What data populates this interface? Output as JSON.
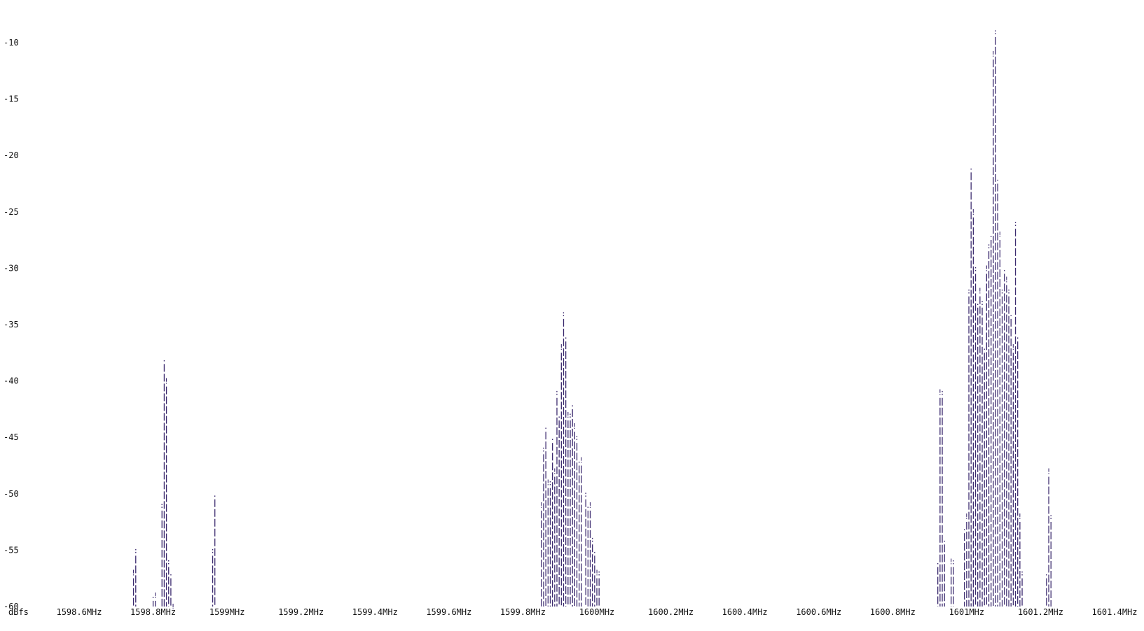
{
  "chart_data": {
    "type": "bar",
    "style": "ascii-text-spectrum",
    "bar_color": "#3b2a6e",
    "text_color": "#111111",
    "y_unit_label": "dBfs",
    "ylim": [
      -60,
      -9
    ],
    "y_ticks": [
      {
        "value": -10,
        "label": "-10"
      },
      {
        "value": -15,
        "label": "-15"
      },
      {
        "value": -20,
        "label": "-20"
      },
      {
        "value": -25,
        "label": "-25"
      },
      {
        "value": -30,
        "label": "-30"
      },
      {
        "value": -35,
        "label": "-35"
      },
      {
        "value": -40,
        "label": "-40"
      },
      {
        "value": -45,
        "label": "-45"
      },
      {
        "value": -50,
        "label": "-50"
      },
      {
        "value": -55,
        "label": "-55"
      },
      {
        "value": -60,
        "label": "-60"
      }
    ],
    "xlim": [
      1598.5,
      1601.45
    ],
    "x_ticks": [
      {
        "value": 1598.6,
        "label": "1598.6MHz"
      },
      {
        "value": 1598.8,
        "label": "1598.8MHz"
      },
      {
        "value": 1599.0,
        "label": "1599MHz"
      },
      {
        "value": 1599.2,
        "label": "1599.2MHz"
      },
      {
        "value": 1599.4,
        "label": "1599.4MHz"
      },
      {
        "value": 1599.6,
        "label": "1599.6MHz"
      },
      {
        "value": 1599.8,
        "label": "1599.8MHz"
      },
      {
        "value": 1600.0,
        "label": "1600MHz"
      },
      {
        "value": 1600.2,
        "label": "1600.2MHz"
      },
      {
        "value": 1600.4,
        "label": "1600.4MHz"
      },
      {
        "value": 1600.6,
        "label": "1600.6MHz"
      },
      {
        "value": 1600.8,
        "label": "1600.8MHz"
      },
      {
        "value": 1601.0,
        "label": "1601MHz"
      },
      {
        "value": 1601.2,
        "label": "1601.2MHz"
      },
      {
        "value": 1601.4,
        "label": "1601.4MHz"
      }
    ],
    "peak_glyphs": [
      "!",
      ":",
      "."
    ],
    "points": [
      {
        "x": 1598.747,
        "y": -57
      },
      {
        "x": 1598.753,
        "y": -55
      },
      {
        "x": 1598.8,
        "y": -59
      },
      {
        "x": 1598.806,
        "y": -59
      },
      {
        "x": 1598.824,
        "y": -51
      },
      {
        "x": 1598.83,
        "y": -38
      },
      {
        "x": 1598.836,
        "y": -40
      },
      {
        "x": 1598.842,
        "y": -56
      },
      {
        "x": 1598.848,
        "y": -57
      },
      {
        "x": 1598.854,
        "y": -60
      },
      {
        "x": 1598.961,
        "y": -55
      },
      {
        "x": 1598.967,
        "y": -50
      },
      {
        "x": 1599.85,
        "y": -51
      },
      {
        "x": 1599.856,
        "y": -46
      },
      {
        "x": 1599.862,
        "y": -44
      },
      {
        "x": 1599.868,
        "y": -49
      },
      {
        "x": 1599.874,
        "y": -49
      },
      {
        "x": 1599.88,
        "y": -45
      },
      {
        "x": 1599.886,
        "y": -48
      },
      {
        "x": 1599.892,
        "y": -41
      },
      {
        "x": 1599.898,
        "y": -43
      },
      {
        "x": 1599.904,
        "y": -37
      },
      {
        "x": 1599.91,
        "y": -34
      },
      {
        "x": 1599.916,
        "y": -36
      },
      {
        "x": 1599.922,
        "y": -43
      },
      {
        "x": 1599.928,
        "y": -43
      },
      {
        "x": 1599.934,
        "y": -42
      },
      {
        "x": 1599.94,
        "y": -44
      },
      {
        "x": 1599.946,
        "y": -45
      },
      {
        "x": 1599.952,
        "y": -47
      },
      {
        "x": 1599.958,
        "y": -47
      },
      {
        "x": 1599.97,
        "y": -50
      },
      {
        "x": 1599.976,
        "y": -51
      },
      {
        "x": 1599.982,
        "y": -51
      },
      {
        "x": 1599.988,
        "y": -54
      },
      {
        "x": 1599.994,
        "y": -55
      },
      {
        "x": 1600.0,
        "y": -57
      },
      {
        "x": 1600.006,
        "y": -57
      },
      {
        "x": 1600.922,
        "y": -56
      },
      {
        "x": 1600.928,
        "y": -41
      },
      {
        "x": 1600.934,
        "y": -41
      },
      {
        "x": 1600.94,
        "y": -54
      },
      {
        "x": 1600.958,
        "y": -56
      },
      {
        "x": 1600.964,
        "y": -56
      },
      {
        "x": 1600.994,
        "y": -53
      },
      {
        "x": 1601.0,
        "y": -52
      },
      {
        "x": 1601.006,
        "y": -32
      },
      {
        "x": 1601.012,
        "y": -21
      },
      {
        "x": 1601.018,
        "y": -25
      },
      {
        "x": 1601.024,
        "y": -30
      },
      {
        "x": 1601.03,
        "y": -33
      },
      {
        "x": 1601.036,
        "y": -32
      },
      {
        "x": 1601.042,
        "y": -33
      },
      {
        "x": 1601.048,
        "y": -37
      },
      {
        "x": 1601.054,
        "y": -30
      },
      {
        "x": 1601.06,
        "y": -28
      },
      {
        "x": 1601.066,
        "y": -27
      },
      {
        "x": 1601.072,
        "y": -11
      },
      {
        "x": 1601.078,
        "y": -9
      },
      {
        "x": 1601.084,
        "y": -22
      },
      {
        "x": 1601.09,
        "y": -27
      },
      {
        "x": 1601.096,
        "y": -32
      },
      {
        "x": 1601.102,
        "y": -30
      },
      {
        "x": 1601.108,
        "y": -31
      },
      {
        "x": 1601.114,
        "y": -32
      },
      {
        "x": 1601.12,
        "y": -34
      },
      {
        "x": 1601.126,
        "y": -37
      },
      {
        "x": 1601.132,
        "y": -26
      },
      {
        "x": 1601.138,
        "y": -36
      },
      {
        "x": 1601.144,
        "y": -52
      },
      {
        "x": 1601.15,
        "y": -57
      },
      {
        "x": 1601.216,
        "y": -57
      },
      {
        "x": 1601.222,
        "y": -48
      },
      {
        "x": 1601.228,
        "y": -52
      }
    ]
  }
}
